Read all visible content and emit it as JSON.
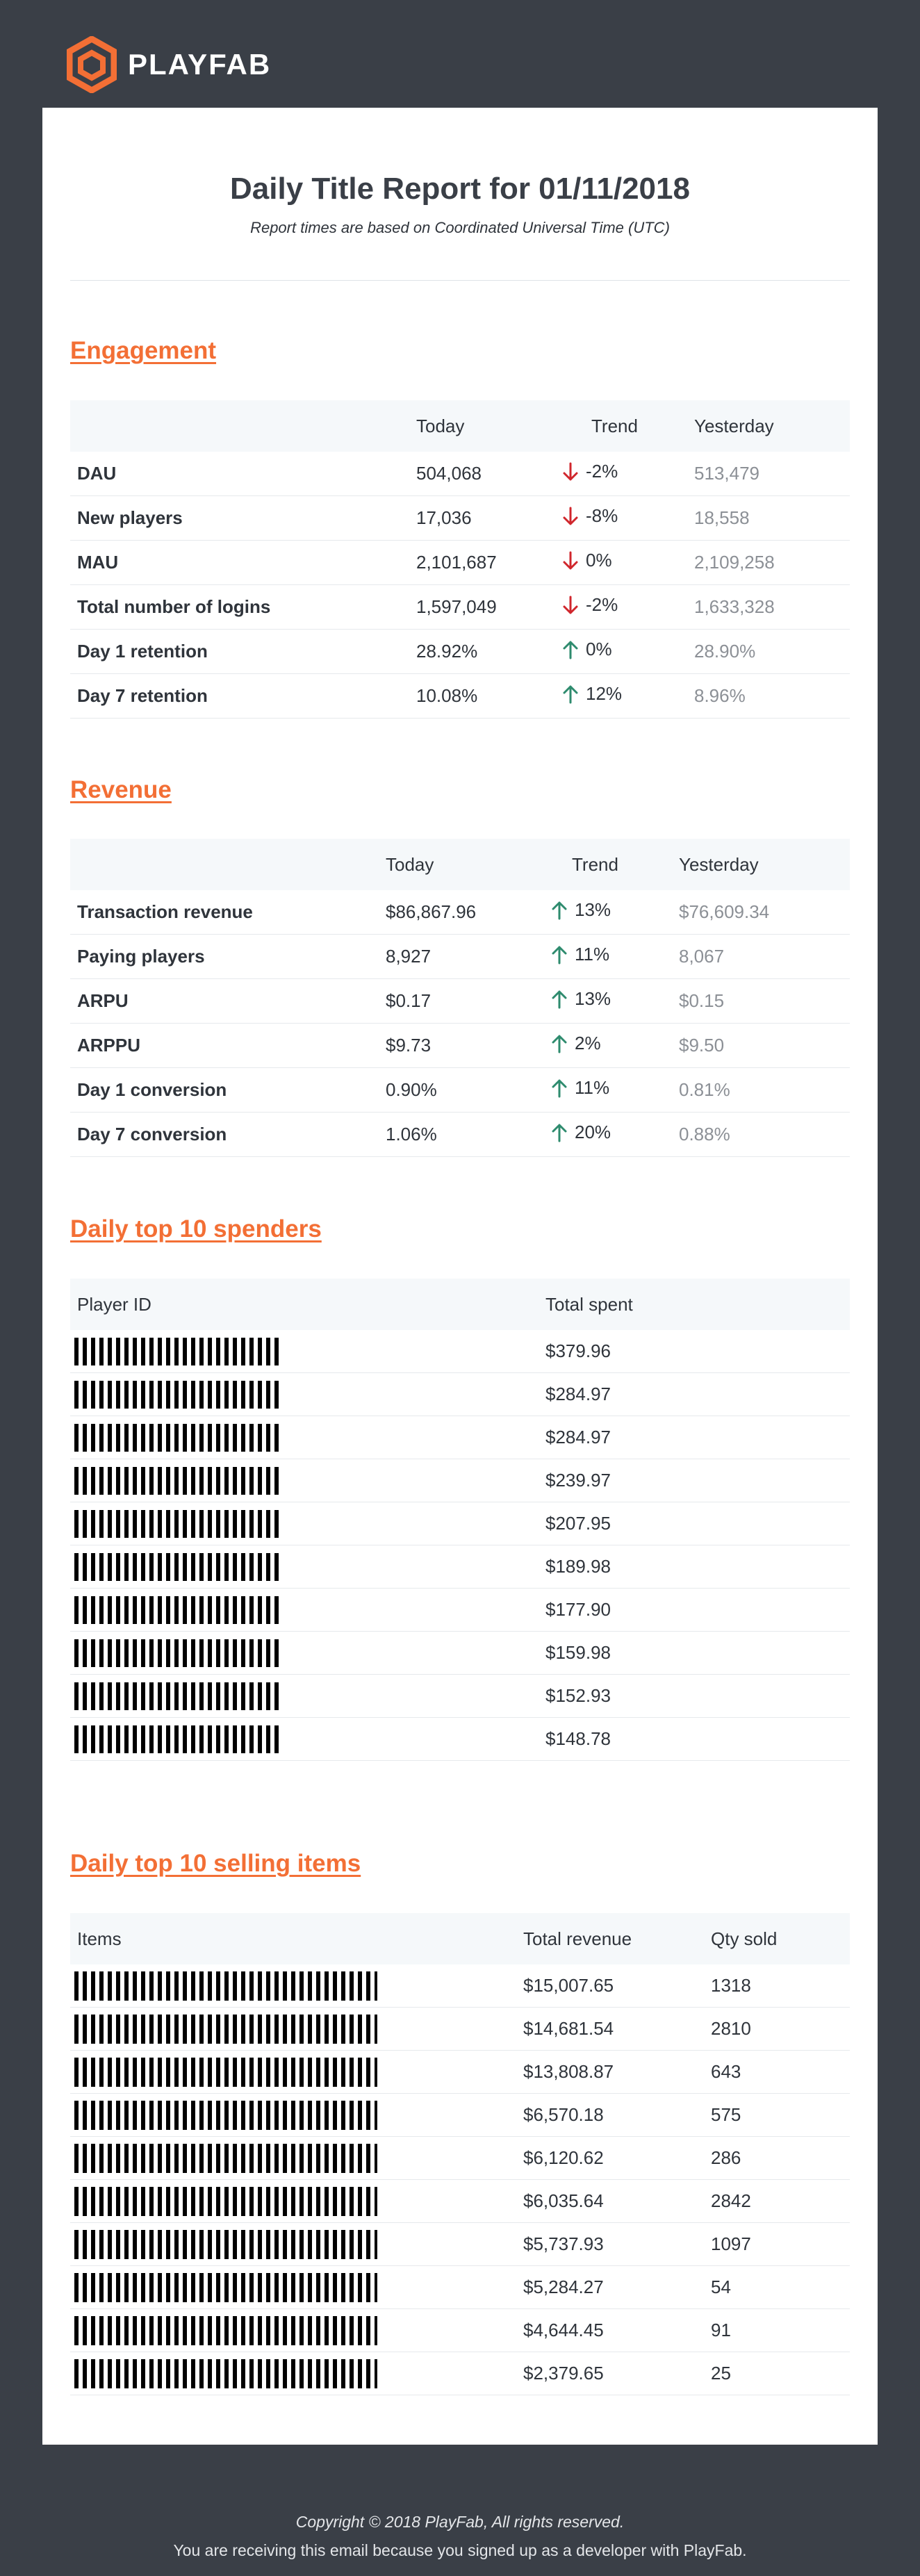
{
  "brand": {
    "name": "PLAYFAB",
    "accent": "#f36f35"
  },
  "report": {
    "title": "Daily Title Report for 01/11/2018",
    "subtitle": "Report times are based on Coordinated Universal Time (UTC)"
  },
  "engagement": {
    "title": "Engagement",
    "headers": [
      "",
      "Today",
      "Trend",
      "Yesterday"
    ],
    "rows": [
      {
        "label": "DAU",
        "today": "504,068",
        "trend": "-2%",
        "dir": "down",
        "yesterday": "513,479"
      },
      {
        "label": "New players",
        "today": "17,036",
        "trend": "-8%",
        "dir": "down",
        "yesterday": "18,558"
      },
      {
        "label": "MAU",
        "today": "2,101,687",
        "trend": "0%",
        "dir": "down",
        "yesterday": "2,109,258"
      },
      {
        "label": "Total number of logins",
        "today": "1,597,049",
        "trend": "-2%",
        "dir": "down",
        "yesterday": "1,633,328"
      },
      {
        "label": "Day 1 retention",
        "today": "28.92%",
        "trend": "0%",
        "dir": "up",
        "yesterday": "28.90%"
      },
      {
        "label": "Day 7 retention",
        "today": "10.08%",
        "trend": "12%",
        "dir": "up",
        "yesterday": "8.96%"
      }
    ]
  },
  "revenue": {
    "title": "Revenue",
    "headers": [
      "",
      "Today",
      "Trend",
      "Yesterday"
    ],
    "rows": [
      {
        "label": "Transaction revenue",
        "today": "$86,867.96",
        "trend": "13%",
        "dir": "up",
        "yesterday": "$76,609.34"
      },
      {
        "label": "Paying players",
        "today": "8,927",
        "trend": "11%",
        "dir": "up",
        "yesterday": "8,067"
      },
      {
        "label": "ARPU",
        "today": "$0.17",
        "trend": "13%",
        "dir": "up",
        "yesterday": "$0.15"
      },
      {
        "label": "ARPPU",
        "today": "$9.73",
        "trend": "2%",
        "dir": "up",
        "yesterday": "$9.50"
      },
      {
        "label": "Day 1 conversion",
        "today": "0.90%",
        "trend": "11%",
        "dir": "up",
        "yesterday": "0.81%"
      },
      {
        "label": "Day 7 conversion",
        "today": "1.06%",
        "trend": "20%",
        "dir": "up",
        "yesterday": "0.88%"
      }
    ]
  },
  "spenders": {
    "title": "Daily top 10 spenders",
    "headers": [
      "Player ID",
      "Total spent"
    ],
    "rows": [
      "$379.96",
      "$284.97",
      "$284.97",
      "$239.97",
      "$207.95",
      "$189.98",
      "$177.90",
      "$159.98",
      "$152.93",
      "$148.78"
    ]
  },
  "items": {
    "title": "Daily top 10 selling items",
    "headers": [
      "Items",
      "Total revenue",
      "Qty sold"
    ],
    "rows": [
      {
        "revenue": "$15,007.65",
        "qty": "1318"
      },
      {
        "revenue": "$14,681.54",
        "qty": "2810"
      },
      {
        "revenue": "$13,808.87",
        "qty": "643"
      },
      {
        "revenue": "$6,570.18",
        "qty": "575"
      },
      {
        "revenue": "$6,120.62",
        "qty": "286"
      },
      {
        "revenue": "$6,035.64",
        "qty": "2842"
      },
      {
        "revenue": "$5,737.93",
        "qty": "1097"
      },
      {
        "revenue": "$5,284.27",
        "qty": "54"
      },
      {
        "revenue": "$4,644.45",
        "qty": "91"
      },
      {
        "revenue": "$2,379.65",
        "qty": "25"
      }
    ]
  },
  "footer": {
    "copyright": "Copyright © 2018 PlayFab, All rights reserved.",
    "notice": "You are receiving this email because you signed up as a developer with PlayFab."
  }
}
